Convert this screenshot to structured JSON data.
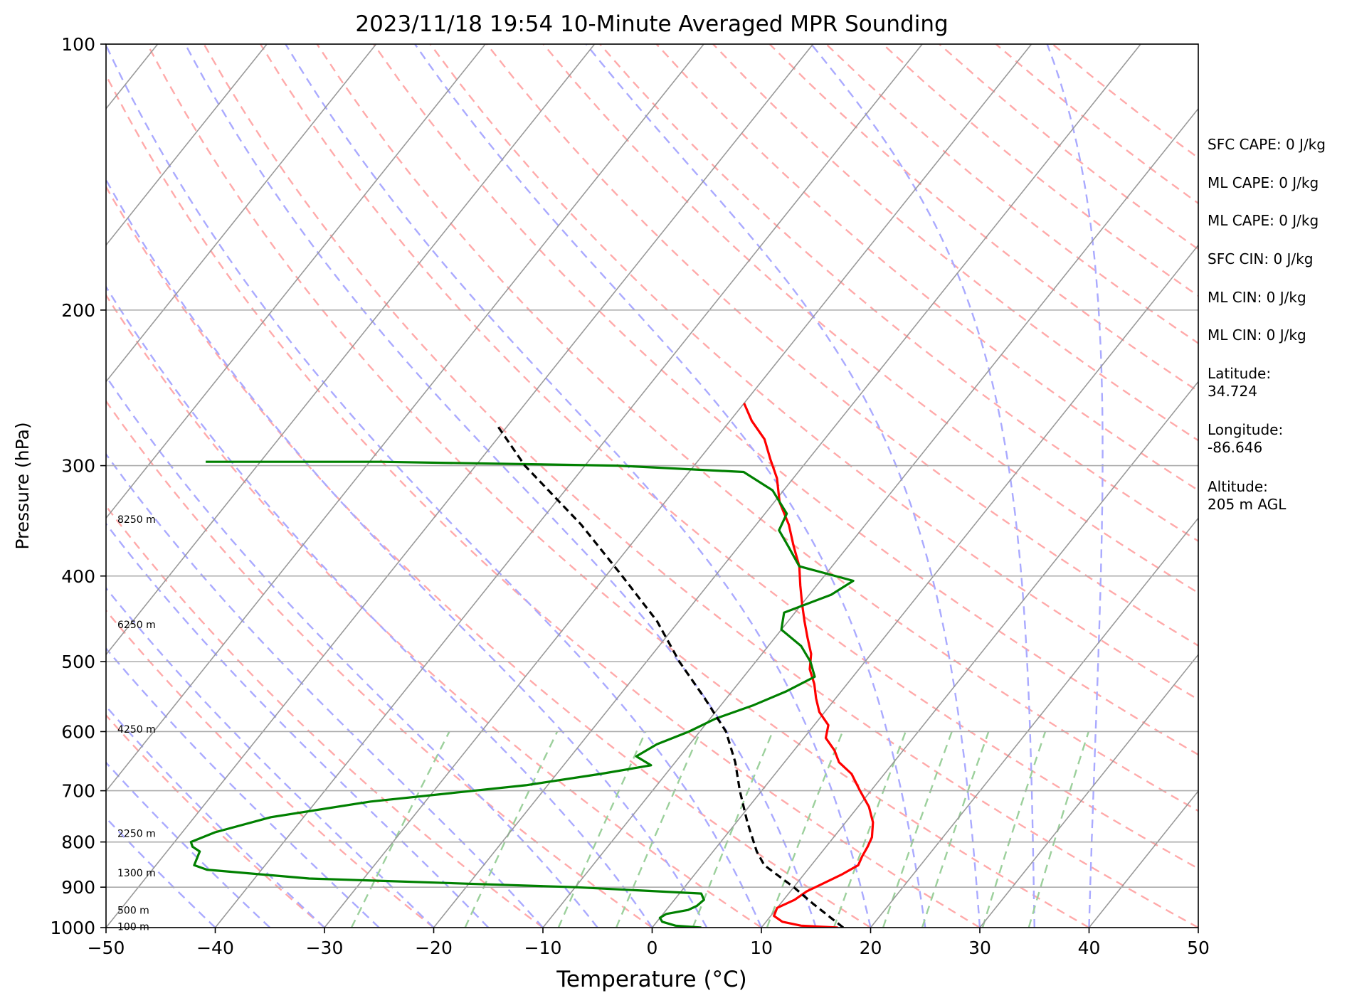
{
  "chart_data": {
    "type": "line",
    "subtype": "skew-T log-P sounding",
    "title": "2023/11/18 19:54 10-Minute Averaged MPR Sounding",
    "xlabel": "Temperature (°C)",
    "ylabel": "Pressure (hPa)",
    "xlim": [
      -50,
      50
    ],
    "ylim": [
      1000,
      100
    ],
    "y_scale": "log",
    "x_ticks": [
      "−50",
      "−40",
      "−30",
      "−20",
      "−10",
      "0",
      "10",
      "20",
      "30",
      "40",
      "50"
    ],
    "y_ticks": [
      "100",
      "200",
      "300",
      "400",
      "500",
      "600",
      "700",
      "800",
      "900",
      "1000"
    ],
    "grid": true,
    "series": [
      {
        "color": "#ff0000",
        "points": [
          [
            1000,
            17.0
          ],
          [
            995,
            13.5
          ],
          [
            985,
            11.5
          ],
          [
            970,
            10.3
          ],
          [
            950,
            10.0
          ],
          [
            930,
            11.0
          ],
          [
            910,
            11.5
          ],
          [
            890,
            12.5
          ],
          [
            870,
            13.5
          ],
          [
            850,
            14.3
          ],
          [
            830,
            14.0
          ],
          [
            810,
            13.8
          ],
          [
            790,
            13.5
          ],
          [
            760,
            12.5
          ],
          [
            730,
            11.0
          ],
          [
            700,
            9.0
          ],
          [
            670,
            7.0
          ],
          [
            650,
            5.0
          ],
          [
            630,
            3.7
          ],
          [
            610,
            2.0
          ],
          [
            590,
            1.3
          ],
          [
            570,
            -0.5
          ],
          [
            550,
            -1.8
          ],
          [
            530,
            -3.0
          ],
          [
            510,
            -4.5
          ],
          [
            490,
            -5.5
          ],
          [
            470,
            -7.0
          ],
          [
            450,
            -8.5
          ],
          [
            430,
            -10.0
          ],
          [
            410,
            -11.5
          ],
          [
            390,
            -13.0
          ],
          [
            370,
            -15.0
          ],
          [
            350,
            -17.0
          ],
          [
            330,
            -19.5
          ],
          [
            310,
            -21.5
          ],
          [
            295,
            -23.5
          ],
          [
            280,
            -25.5
          ],
          [
            267,
            -28.0
          ],
          [
            255,
            -30.0
          ]
        ]
      },
      {
        "color": "#008000",
        "points": [
          [
            1000,
            4.5
          ],
          [
            995,
            2.0
          ],
          [
            985,
            0.5
          ],
          [
            975,
            0.0
          ],
          [
            965,
            0.3
          ],
          [
            955,
            2.0
          ],
          [
            945,
            2.5
          ],
          [
            930,
            2.7
          ],
          [
            915,
            2.0
          ],
          [
            900,
            -10.0
          ],
          [
            880,
            -35.0
          ],
          [
            860,
            -45.0
          ],
          [
            850,
            -46.5
          ],
          [
            820,
            -47.0
          ],
          [
            810,
            -48.0
          ],
          [
            800,
            -48.5
          ],
          [
            780,
            -47.0
          ],
          [
            750,
            -43.0
          ],
          [
            720,
            -35.0
          ],
          [
            690,
            -22.0
          ],
          [
            670,
            -16.0
          ],
          [
            655,
            -12.0
          ],
          [
            640,
            -14.0
          ],
          [
            620,
            -13.0
          ],
          [
            600,
            -11.0
          ],
          [
            580,
            -9.5
          ],
          [
            560,
            -7.0
          ],
          [
            540,
            -5.0
          ],
          [
            520,
            -3.5
          ],
          [
            500,
            -5.0
          ],
          [
            480,
            -7.0
          ],
          [
            460,
            -10.0
          ],
          [
            440,
            -11.0
          ],
          [
            420,
            -8.0
          ],
          [
            405,
            -7.0
          ],
          [
            390,
            -13.0
          ],
          [
            370,
            -15.5
          ],
          [
            355,
            -17.5
          ],
          [
            340,
            -18.0
          ],
          [
            320,
            -21.0
          ],
          [
            305,
            -25.0
          ],
          [
            300,
            -37.0
          ],
          [
            297,
            -59.0
          ],
          [
            297,
            -75.0
          ]
        ]
      },
      {
        "color": "#000000",
        "dashed": true,
        "points": [
          [
            1000,
            17.5
          ],
          [
            940,
            13.0
          ],
          [
            900,
            10.0
          ],
          [
            850,
            5.7
          ],
          [
            820,
            4.0
          ],
          [
            760,
            1.0
          ],
          [
            700,
            -2.0
          ],
          [
            650,
            -4.5
          ],
          [
            600,
            -7.6
          ],
          [
            550,
            -12.0
          ],
          [
            500,
            -17.0
          ],
          [
            450,
            -22.0
          ],
          [
            400,
            -28.5
          ],
          [
            350,
            -36.0
          ],
          [
            300,
            -45.5
          ],
          [
            270,
            -51.0
          ]
        ]
      }
    ],
    "height_labels": [
      {
        "text": "8250 m",
        "p": 345
      },
      {
        "text": "6250 m",
        "p": 454
      },
      {
        "text": "4250 m",
        "p": 596
      },
      {
        "text": "2250 m",
        "p": 782
      },
      {
        "text": "1300 m",
        "p": 867
      },
      {
        "text": "500 m",
        "p": 956
      },
      {
        "text": "100 m",
        "p": 997
      }
    ],
    "stats": [
      "SFC CAPE: 0 J/kg",
      "ML CAPE: 0 J/kg",
      "ML CAPE: 0 J/kg",
      "SFC CIN: 0 J/kg",
      "ML CIN: 0 J/kg",
      "ML CIN: 0 J/kg",
      "Latitude:\n34.724",
      "Longitude:\n-86.646",
      "Altitude:\n205 m AGL"
    ],
    "colors": {
      "isotherm": "#999999",
      "dry_adiabat": "#ffaaaa",
      "moist_adiabat": "#aaaaff",
      "mixing_ratio": "#9cd09c"
    }
  }
}
